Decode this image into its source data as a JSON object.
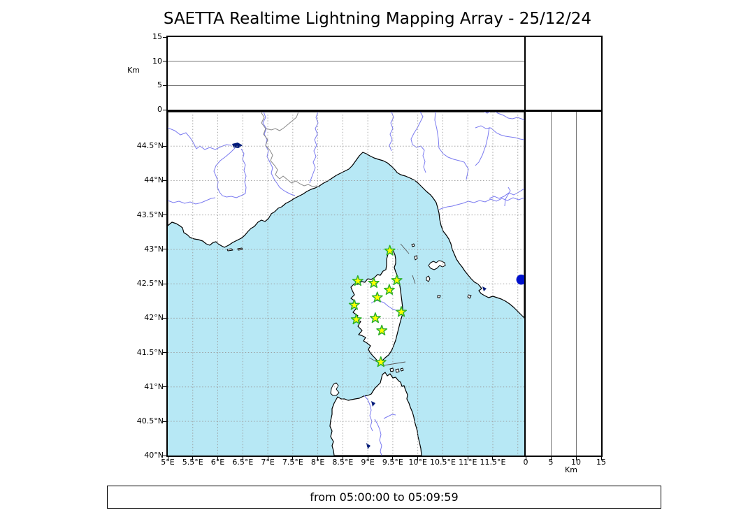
{
  "title": "SAETTA Realtime Lightning Mapping Array - 25/12/24",
  "footer": {
    "text": "from 05:00:00 to 05:09:59"
  },
  "altitude_axis": {
    "label": "Km",
    "ticks": [
      0,
      5,
      10,
      15
    ],
    "max_km": 15
  },
  "map": {
    "lon_ticks": [
      {
        "value": 5,
        "label": "5°E"
      },
      {
        "value": 5.5,
        "label": "5.5°E"
      },
      {
        "value": 6,
        "label": "6°E"
      },
      {
        "value": 6.5,
        "label": "6.5°E"
      },
      {
        "value": 7,
        "label": "7°E"
      },
      {
        "value": 7.5,
        "label": "7.5°E"
      },
      {
        "value": 8,
        "label": "8°E"
      },
      {
        "value": 8.5,
        "label": "8.5°E"
      },
      {
        "value": 9,
        "label": "9°E"
      },
      {
        "value": 9.5,
        "label": "9.5°E"
      },
      {
        "value": 10,
        "label": "10°E"
      },
      {
        "value": 10.5,
        "label": "10.5°E"
      },
      {
        "value": 11,
        "label": "11°E"
      },
      {
        "value": 11.5,
        "label": "11.5°E"
      }
    ],
    "lat_ticks": [
      {
        "value": 44.5,
        "label": "44.5°N"
      },
      {
        "value": 44,
        "label": "44°N"
      },
      {
        "value": 43.5,
        "label": "43.5°N"
      },
      {
        "value": 43,
        "label": "43°N"
      },
      {
        "value": 42.5,
        "label": "42.5°N"
      },
      {
        "value": 42,
        "label": "42°N"
      },
      {
        "value": 41.5,
        "label": "41.5°N"
      },
      {
        "value": 41,
        "label": "41°N"
      },
      {
        "value": 40.5,
        "label": "40.5°N"
      },
      {
        "value": 40,
        "label": "40°N"
      }
    ],
    "extent": {
      "lon": [
        5,
        12.13
      ],
      "lat": [
        40,
        45
      ]
    },
    "grid_step_deg": 0.5,
    "stations_lonlat": [
      [
        9.44,
        42.98
      ],
      [
        8.8,
        42.54
      ],
      [
        9.12,
        42.51
      ],
      [
        9.58,
        42.55
      ],
      [
        9.43,
        42.41
      ],
      [
        9.19,
        42.3
      ],
      [
        8.73,
        42.19
      ],
      [
        9.67,
        42.09
      ],
      [
        8.77,
        41.98
      ],
      [
        9.15,
        42.0
      ],
      [
        9.28,
        41.82
      ],
      [
        9.26,
        41.36
      ]
    ],
    "event_marker": {
      "lon": 12.07,
      "lat": 42.56
    }
  },
  "colors": {
    "sea": "#b7e8f5",
    "land": "#ffffff",
    "coast": "#000000",
    "river": "#7b7bf0",
    "national_border": "#888888",
    "grid": "#999999",
    "lake": "#001a7a",
    "station_fill": "#ffff00",
    "station_edge": "#2db02d",
    "event_marker": "#0011cc"
  }
}
